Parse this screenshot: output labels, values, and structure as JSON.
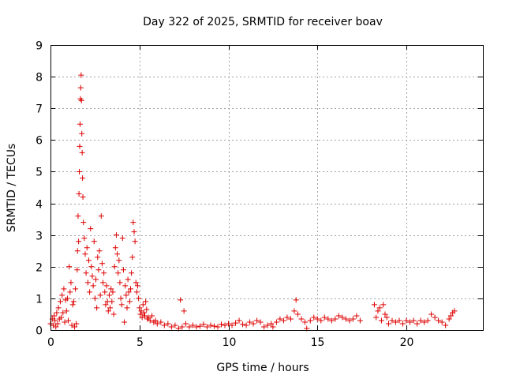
{
  "chart_data": {
    "type": "scatter",
    "title": "Day 322 of 2025, SRMTID for receiver boav",
    "xlabel": "GPS time / hours",
    "ylabel": "SRMTID / TECUs",
    "xlim": [
      0,
      24.3
    ],
    "ylim": [
      0,
      9
    ],
    "xticks": [
      0,
      5,
      10,
      15,
      20
    ],
    "yticks": [
      0,
      1,
      2,
      3,
      4,
      5,
      6,
      7,
      8,
      9
    ],
    "grid": true,
    "marker": "+",
    "color": "#dd0000",
    "series": [
      {
        "name": "SRMTID",
        "points": [
          [
            0.0,
            0.2
          ],
          [
            0.1,
            0.35
          ],
          [
            0.15,
            0.15
          ],
          [
            0.2,
            0.45
          ],
          [
            0.25,
            0.3
          ],
          [
            0.3,
            0.1
          ],
          [
            0.35,
            0.55
          ],
          [
            0.4,
            0.2
          ],
          [
            0.45,
            0.7
          ],
          [
            0.5,
            0.35
          ],
          [
            0.55,
            0.9
          ],
          [
            0.6,
            0.4
          ],
          [
            0.65,
            1.1
          ],
          [
            0.7,
            0.55
          ],
          [
            0.75,
            1.3
          ],
          [
            0.8,
            0.25
          ],
          [
            0.85,
            0.95
          ],
          [
            0.9,
            0.6
          ],
          [
            0.95,
            1.0
          ],
          [
            1.0,
            0.3
          ],
          [
            1.05,
            2.0
          ],
          [
            1.1,
            1.2
          ],
          [
            1.15,
            1.5
          ],
          [
            1.2,
            0.15
          ],
          [
            1.25,
            0.8
          ],
          [
            1.3,
            0.9
          ],
          [
            1.35,
            0.1
          ],
          [
            1.4,
            1.3
          ],
          [
            1.45,
            0.2
          ],
          [
            1.5,
            1.9
          ],
          [
            1.52,
            2.5
          ],
          [
            1.55,
            3.6
          ],
          [
            1.58,
            2.8
          ],
          [
            1.6,
            4.3
          ],
          [
            1.62,
            5.0
          ],
          [
            1.64,
            5.8
          ],
          [
            1.66,
            6.5
          ],
          [
            1.68,
            7.3
          ],
          [
            1.7,
            7.65
          ],
          [
            1.72,
            8.05
          ],
          [
            1.74,
            7.25
          ],
          [
            1.76,
            6.2
          ],
          [
            1.78,
            5.6
          ],
          [
            1.8,
            4.8
          ],
          [
            1.82,
            4.2
          ],
          [
            1.85,
            3.4
          ],
          [
            1.9,
            2.9
          ],
          [
            1.95,
            2.4
          ],
          [
            2.0,
            1.8
          ],
          [
            2.05,
            2.6
          ],
          [
            2.1,
            1.5
          ],
          [
            2.15,
            2.2
          ],
          [
            2.2,
            1.2
          ],
          [
            2.25,
            3.2
          ],
          [
            2.3,
            2.0
          ],
          [
            2.35,
            1.7
          ],
          [
            2.4,
            1.4
          ],
          [
            2.45,
            2.8
          ],
          [
            2.5,
            1.0
          ],
          [
            2.55,
            1.6
          ],
          [
            2.6,
            0.7
          ],
          [
            2.65,
            2.3
          ],
          [
            2.7,
            1.9
          ],
          [
            2.75,
            2.5
          ],
          [
            2.8,
            1.1
          ],
          [
            2.85,
            3.6
          ],
          [
            2.9,
            2.1
          ],
          [
            2.95,
            1.5
          ],
          [
            3.0,
            1.8
          ],
          [
            3.05,
            1.2
          ],
          [
            3.1,
            0.8
          ],
          [
            3.15,
            1.4
          ],
          [
            3.2,
            0.9
          ],
          [
            3.25,
            0.6
          ],
          [
            3.3,
            1.1
          ],
          [
            3.35,
            0.7
          ],
          [
            3.4,
            1.3
          ],
          [
            3.45,
            0.9
          ],
          [
            3.5,
            1.2
          ],
          [
            3.55,
            0.5
          ],
          [
            3.6,
            2.0
          ],
          [
            3.65,
            2.6
          ],
          [
            3.7,
            3.0
          ],
          [
            3.75,
            2.4
          ],
          [
            3.8,
            1.8
          ],
          [
            3.85,
            2.2
          ],
          [
            3.9,
            1.5
          ],
          [
            3.95,
            1.0
          ],
          [
            4.0,
            0.8
          ],
          [
            4.05,
            2.9
          ],
          [
            4.1,
            1.9
          ],
          [
            4.15,
            0.25
          ],
          [
            4.2,
            1.4
          ],
          [
            4.25,
            1.1
          ],
          [
            4.3,
            0.7
          ],
          [
            4.35,
            1.6
          ],
          [
            4.4,
            1.2
          ],
          [
            4.45,
            0.9
          ],
          [
            4.5,
            1.3
          ],
          [
            4.55,
            1.8
          ],
          [
            4.6,
            2.3
          ],
          [
            4.65,
            3.4
          ],
          [
            4.7,
            3.1
          ],
          [
            4.75,
            2.8
          ],
          [
            4.8,
            1.5
          ],
          [
            4.85,
            1.2
          ],
          [
            4.9,
            1.4
          ],
          [
            4.95,
            1.0
          ],
          [
            5.0,
            0.7
          ],
          [
            5.05,
            0.5
          ],
          [
            5.1,
            0.6
          ],
          [
            5.15,
            0.4
          ],
          [
            5.2,
            0.8
          ],
          [
            5.25,
            0.55
          ],
          [
            5.3,
            0.45
          ],
          [
            5.35,
            0.9
          ],
          [
            5.4,
            0.65
          ],
          [
            5.45,
            0.35
          ],
          [
            5.5,
            0.4
          ],
          [
            5.6,
            0.3
          ],
          [
            5.7,
            0.45
          ],
          [
            5.8,
            0.25
          ],
          [
            5.9,
            0.3
          ],
          [
            6.0,
            0.2
          ],
          [
            6.2,
            0.25
          ],
          [
            6.4,
            0.15
          ],
          [
            6.6,
            0.2
          ],
          [
            6.8,
            0.1
          ],
          [
            7.0,
            0.15
          ],
          [
            7.2,
            0.05
          ],
          [
            7.3,
            0.95
          ],
          [
            7.4,
            0.1
          ],
          [
            7.5,
            0.6
          ],
          [
            7.6,
            0.2
          ],
          [
            7.8,
            0.1
          ],
          [
            8.0,
            0.15
          ],
          [
            8.2,
            0.1
          ],
          [
            8.4,
            0.12
          ],
          [
            8.6,
            0.18
          ],
          [
            8.8,
            0.1
          ],
          [
            9.0,
            0.15
          ],
          [
            9.2,
            0.12
          ],
          [
            9.4,
            0.1
          ],
          [
            9.6,
            0.18
          ],
          [
            9.8,
            0.15
          ],
          [
            10.0,
            0.2
          ],
          [
            10.2,
            0.15
          ],
          [
            10.4,
            0.22
          ],
          [
            10.6,
            0.3
          ],
          [
            10.8,
            0.18
          ],
          [
            11.0,
            0.15
          ],
          [
            11.2,
            0.25
          ],
          [
            11.4,
            0.2
          ],
          [
            11.6,
            0.3
          ],
          [
            11.8,
            0.25
          ],
          [
            12.0,
            0.1
          ],
          [
            12.2,
            0.15
          ],
          [
            12.4,
            0.2
          ],
          [
            12.5,
            0.1
          ],
          [
            12.7,
            0.25
          ],
          [
            12.9,
            0.35
          ],
          [
            13.1,
            0.3
          ],
          [
            13.3,
            0.4
          ],
          [
            13.5,
            0.35
          ],
          [
            13.7,
            0.6
          ],
          [
            13.8,
            0.95
          ],
          [
            13.9,
            0.5
          ],
          [
            14.1,
            0.35
          ],
          [
            14.3,
            0.25
          ],
          [
            14.4,
            0.05
          ],
          [
            14.6,
            0.3
          ],
          [
            14.8,
            0.4
          ],
          [
            15.0,
            0.35
          ],
          [
            15.2,
            0.3
          ],
          [
            15.4,
            0.4
          ],
          [
            15.6,
            0.35
          ],
          [
            15.8,
            0.3
          ],
          [
            16.0,
            0.35
          ],
          [
            16.2,
            0.45
          ],
          [
            16.4,
            0.4
          ],
          [
            16.6,
            0.35
          ],
          [
            16.8,
            0.3
          ],
          [
            17.0,
            0.35
          ],
          [
            17.2,
            0.45
          ],
          [
            17.4,
            0.3
          ],
          [
            18.2,
            0.8
          ],
          [
            18.3,
            0.4
          ],
          [
            18.4,
            0.6
          ],
          [
            18.5,
            0.7
          ],
          [
            18.6,
            0.3
          ],
          [
            18.7,
            0.8
          ],
          [
            18.8,
            0.5
          ],
          [
            18.9,
            0.4
          ],
          [
            19.0,
            0.2
          ],
          [
            19.2,
            0.3
          ],
          [
            19.4,
            0.25
          ],
          [
            19.6,
            0.3
          ],
          [
            19.8,
            0.2
          ],
          [
            20.0,
            0.3
          ],
          [
            20.2,
            0.25
          ],
          [
            20.4,
            0.3
          ],
          [
            20.6,
            0.2
          ],
          [
            20.8,
            0.3
          ],
          [
            21.0,
            0.25
          ],
          [
            21.2,
            0.3
          ],
          [
            21.4,
            0.5
          ],
          [
            21.6,
            0.4
          ],
          [
            21.8,
            0.3
          ],
          [
            22.0,
            0.25
          ],
          [
            22.2,
            0.15
          ],
          [
            22.4,
            0.35
          ],
          [
            22.5,
            0.45
          ],
          [
            22.6,
            0.55
          ],
          [
            22.7,
            0.6
          ]
        ]
      }
    ]
  }
}
